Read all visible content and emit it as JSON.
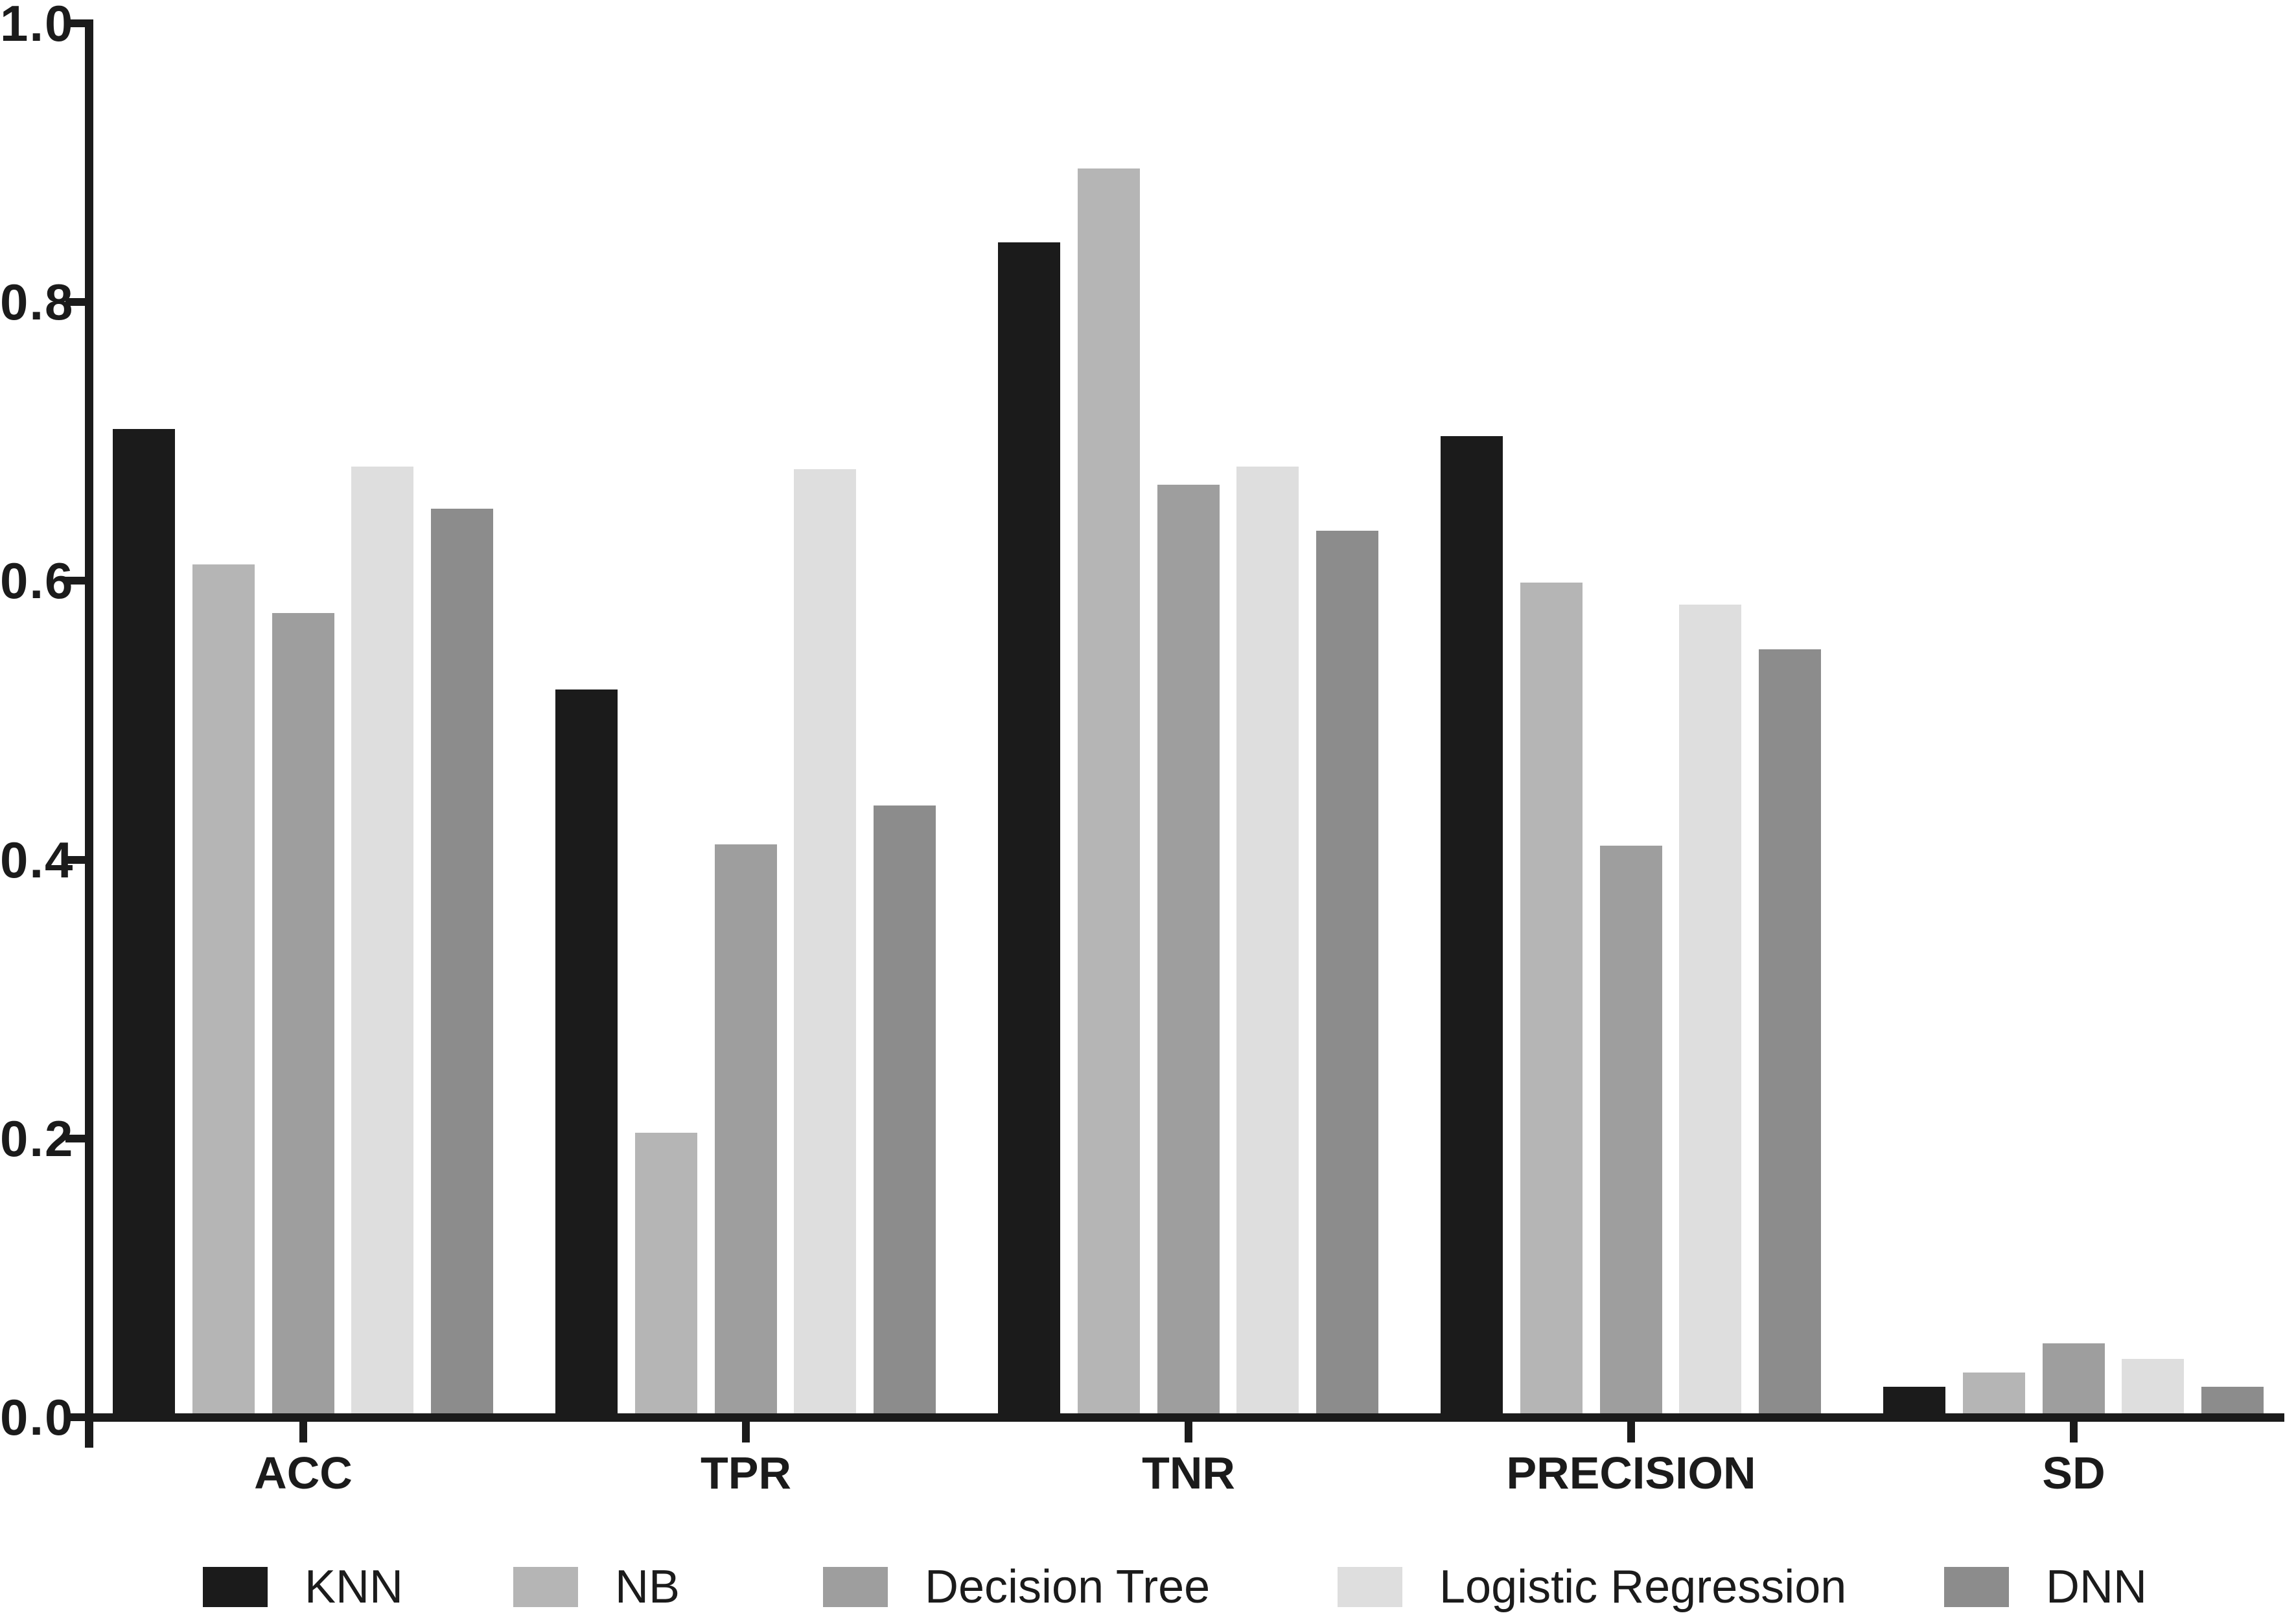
{
  "chart_data": {
    "type": "bar",
    "title": "",
    "xlabel": "",
    "ylabel": "",
    "categories": [
      "ACC",
      "TPR",
      "TNR",
      "PRECISION",
      "SD"
    ],
    "series": [
      {
        "name": "KNN",
        "color": "#1b1b1b",
        "values": [
          0.709,
          0.522,
          0.843,
          0.704,
          0.022
        ]
      },
      {
        "name": "NB",
        "color": "#b5b5b5",
        "values": [
          0.612,
          0.204,
          0.896,
          0.599,
          0.032
        ]
      },
      {
        "name": "Decision Tree",
        "color": "#9e9e9e",
        "values": [
          0.577,
          0.411,
          0.669,
          0.41,
          0.053
        ]
      },
      {
        "name": "Logistic Regression",
        "color": "#dedede",
        "values": [
          0.682,
          0.68,
          0.682,
          0.583,
          0.042
        ]
      },
      {
        "name": "DNN",
        "color": "#8c8c8c",
        "values": [
          0.652,
          0.439,
          0.636,
          0.551,
          0.022
        ]
      }
    ],
    "ylim": [
      0.0,
      1.0
    ],
    "yticks": [
      0.0,
      0.2,
      0.4,
      0.6,
      0.8,
      1.0
    ],
    "ytick_labels": [
      "0.0",
      "0.2",
      "0.4",
      "0.6",
      "0.8",
      "1.0"
    ],
    "grid": false,
    "legend_position": "bottom",
    "axis_color": "#1b1b1b",
    "background_color": "#ffffff"
  }
}
